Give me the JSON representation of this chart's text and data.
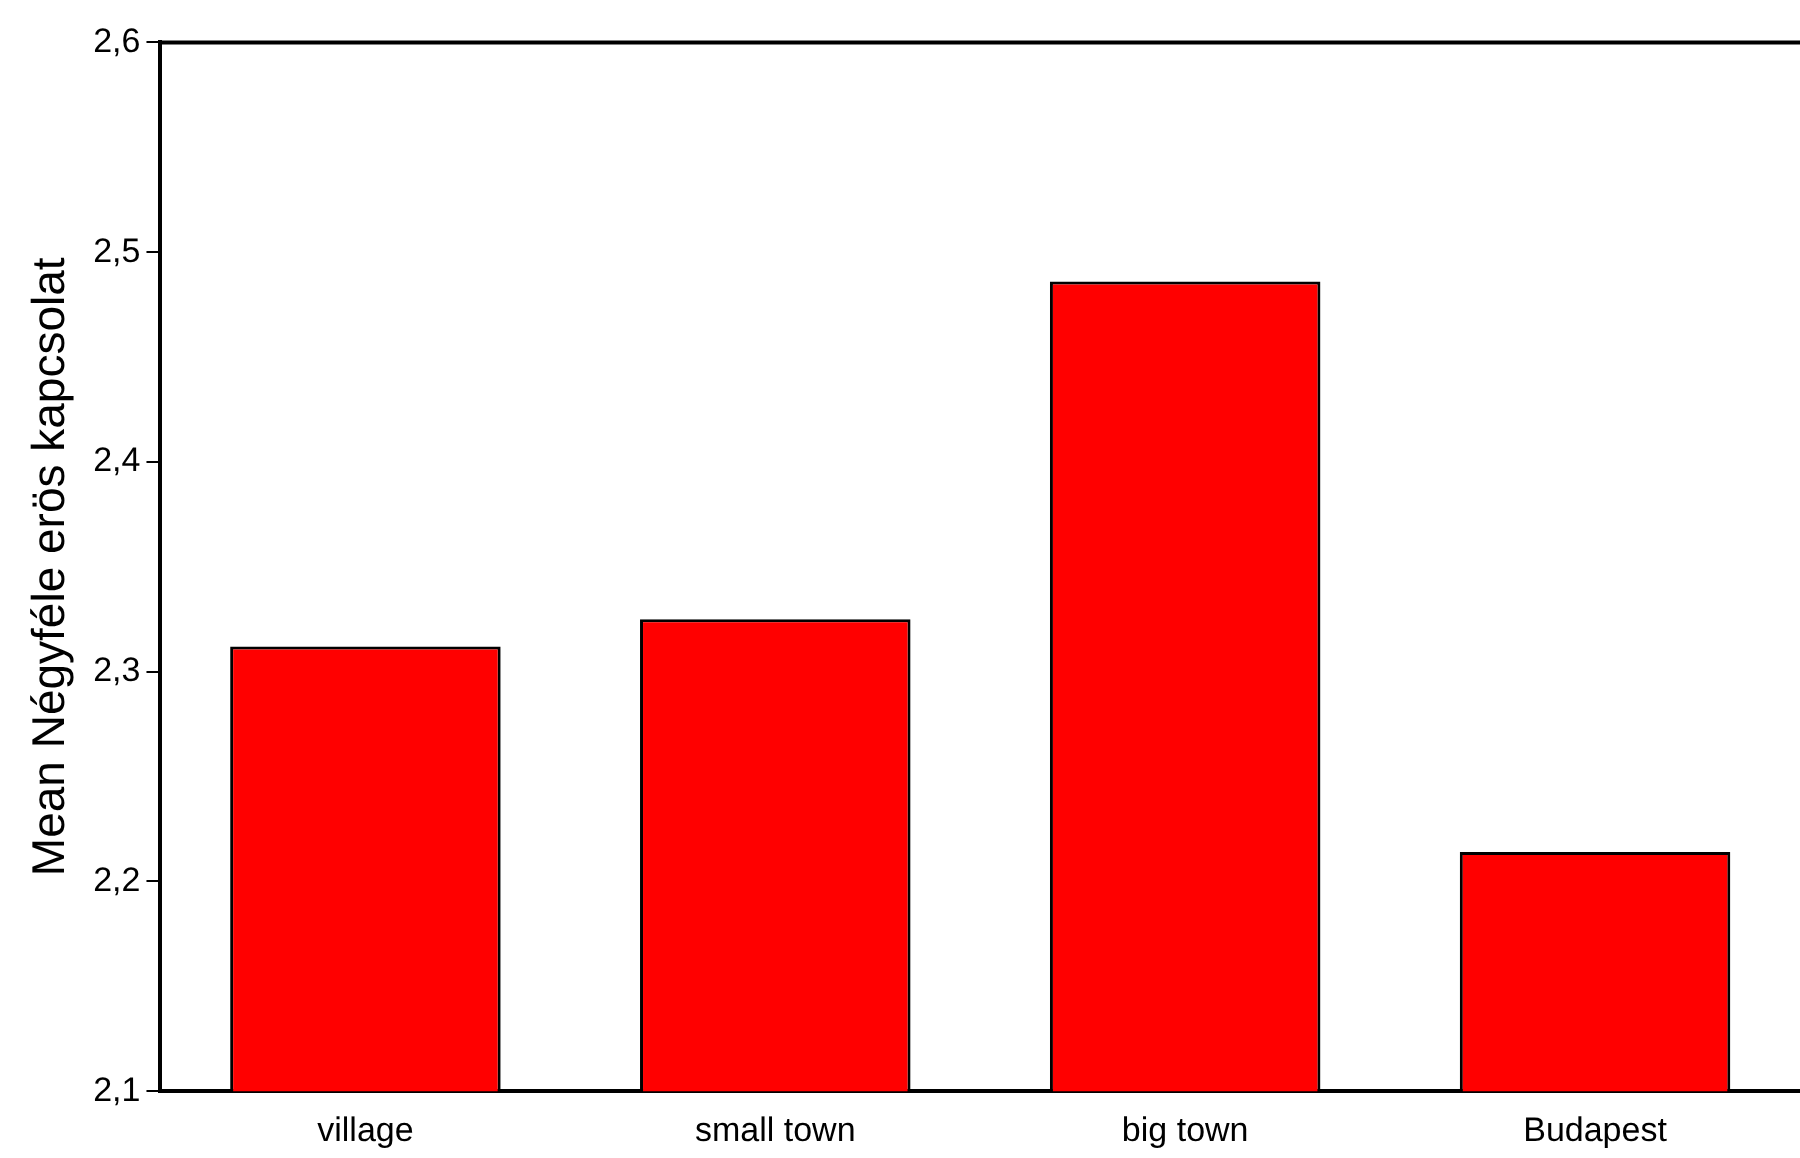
{
  "chart_data": {
    "type": "bar",
    "ylabel": "Mean Négyféle erös kapcsolat",
    "categories": [
      "village",
      "small town",
      "big town",
      "Budapest"
    ],
    "values": [
      2.312,
      2.325,
      2.486,
      2.214
    ],
    "color": "#ff0000",
    "ylim": [
      2.1,
      2.6
    ],
    "yticks": [
      {
        "value": 2.1,
        "label": "2,1"
      },
      {
        "value": 2.2,
        "label": "2,2"
      },
      {
        "value": 2.3,
        "label": "2,3"
      },
      {
        "value": 2.4,
        "label": "2,4"
      },
      {
        "value": 2.5,
        "label": "2,5"
      },
      {
        "value": 2.6,
        "label": "2,6"
      }
    ],
    "grid": false
  }
}
